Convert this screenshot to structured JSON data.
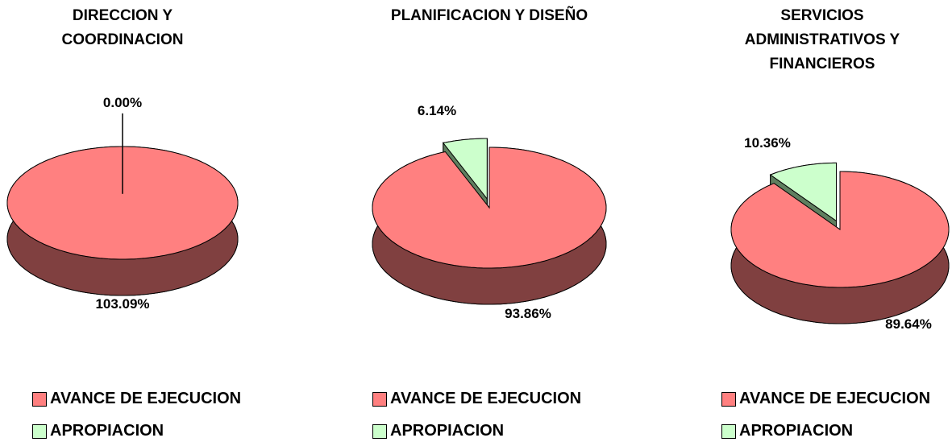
{
  "chart_data": [
    {
      "type": "pie",
      "title": "DIRECCION Y COORDINACION",
      "categories": [
        "AVANCE DE EJECUCION",
        "APROPIACION"
      ],
      "values": [
        103.09,
        0.0
      ],
      "value_labels": [
        "103.09%",
        "0.00%"
      ],
      "colors": [
        "#ff8080",
        "#ccffcc"
      ],
      "side_colors": [
        "#804040",
        "#5f7f5f"
      ]
    },
    {
      "type": "pie",
      "title": "PLANIFICACION Y DISEÑO",
      "categories": [
        "AVANCE DE EJECUCION",
        "APROPIACION"
      ],
      "values": [
        93.86,
        6.14
      ],
      "value_labels": [
        "93.86%",
        "6.14%"
      ],
      "colors": [
        "#ff8080",
        "#ccffcc"
      ],
      "side_colors": [
        "#804040",
        "#5f7f5f"
      ]
    },
    {
      "type": "pie",
      "title": "SERVICIOS ADMINISTRATIVOS Y FINANCIEROS",
      "categories": [
        "AVANCE DE EJECUCION",
        "APROPIACION"
      ],
      "values": [
        89.64,
        10.36
      ],
      "value_labels": [
        "89.64%",
        "10.36%"
      ],
      "colors": [
        "#ff8080",
        "#ccffcc"
      ],
      "side_colors": [
        "#804040",
        "#5f7f5f"
      ]
    }
  ]
}
